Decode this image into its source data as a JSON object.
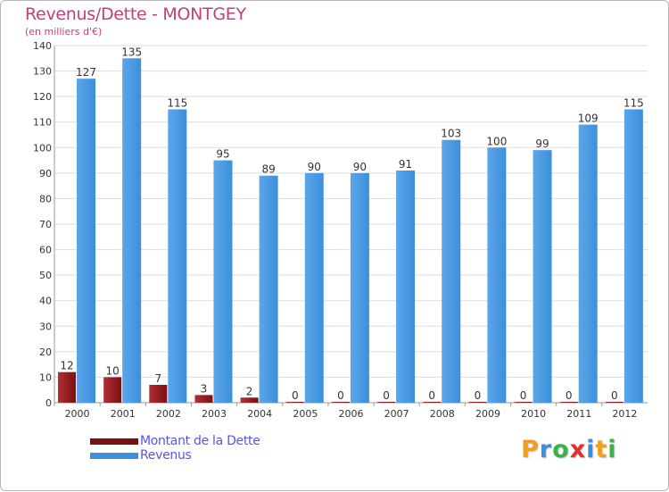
{
  "colors": {
    "debt": "#7a0f12",
    "debt_light": "#b03034",
    "revenue": "#3d8fdc",
    "revenue_light": "#5aa6ea",
    "title": "#c0407a",
    "legend_text": "#5555ee",
    "grid": "#dddddd"
  },
  "chart_data": {
    "type": "bar",
    "title": "Revenus/Dette - MONTGEY",
    "subtitle": "(en milliers d'€)",
    "categories": [
      "2000",
      "2001",
      "2002",
      "2003",
      "2004",
      "2005",
      "2006",
      "2007",
      "2008",
      "2009",
      "2010",
      "2011",
      "2012"
    ],
    "series": [
      {
        "name": "Montant de la Dette",
        "values": [
          12,
          10,
          7,
          3,
          2,
          0,
          0,
          0,
          0,
          0,
          0,
          0,
          0
        ]
      },
      {
        "name": "Revenus",
        "values": [
          127,
          135,
          115,
          95,
          89,
          90,
          90,
          91,
          103,
          100,
          99,
          109,
          115
        ]
      }
    ],
    "ylim": [
      0,
      140
    ],
    "yticks": [
      0,
      10,
      20,
      30,
      40,
      50,
      60,
      70,
      80,
      90,
      100,
      110,
      120,
      130,
      140
    ],
    "grid": true,
    "legend": "bottom-left"
  },
  "logo": {
    "letters": [
      {
        "char": "P",
        "color": "#f0a020"
      },
      {
        "char": "r",
        "color": "#3c8fe0"
      },
      {
        "char": "o",
        "color": "#3cb04a"
      },
      {
        "char": "x",
        "color": "#e03030"
      },
      {
        "char": "i",
        "color": "#3c8fe0"
      },
      {
        "char": "t",
        "color": "#f0a020"
      },
      {
        "char": "i",
        "color": "#3cb04a"
      }
    ]
  }
}
